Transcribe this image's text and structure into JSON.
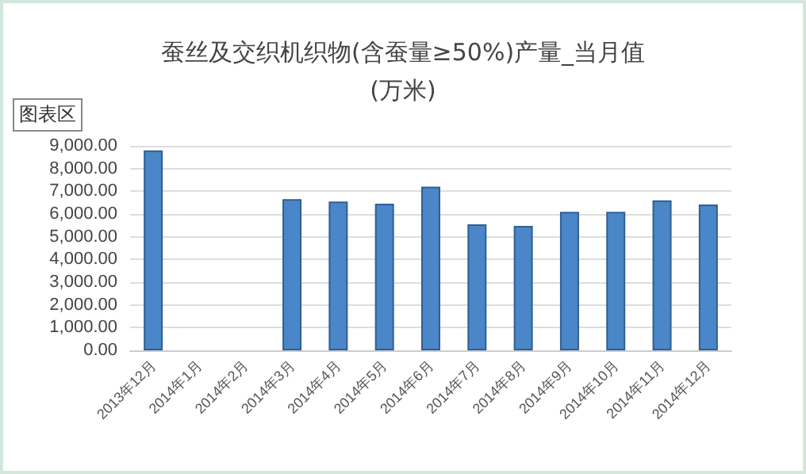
{
  "chart_data": {
    "type": "bar",
    "title": "蚕丝及交织机织物(含蚕量≥50%)产量_当月值\n(万米)",
    "categories": [
      "2013年12月",
      "2014年1月",
      "2014年2月",
      "2014年3月",
      "2014年4月",
      "2014年5月",
      "2014年6月",
      "2014年7月",
      "2014年8月",
      "2014年9月",
      "2014年10月",
      "2014年11月",
      "2014年12月"
    ],
    "values": [
      8800,
      null,
      null,
      6650,
      6550,
      6450,
      7200,
      5550,
      5480,
      6100,
      6100,
      6600,
      6420
    ],
    "color": "#4a86c8",
    "ylim": [
      0,
      9000
    ],
    "yticks": [
      {
        "value": 0,
        "label": "0.00"
      },
      {
        "value": 1000,
        "label": "1,000.00"
      },
      {
        "value": 2000,
        "label": "2,000.00"
      },
      {
        "value": 3000,
        "label": "3,000.00"
      },
      {
        "value": 4000,
        "label": "4,000.00"
      },
      {
        "value": 5000,
        "label": "5,000.00"
      },
      {
        "value": 6000,
        "label": "6,000.00"
      },
      {
        "value": 7000,
        "label": "7,000.00"
      },
      {
        "value": 8000,
        "label": "8,000.00"
      },
      {
        "value": 9000,
        "label": "9,000.00"
      }
    ],
    "grid": true,
    "annotations": [
      "图表区"
    ]
  }
}
